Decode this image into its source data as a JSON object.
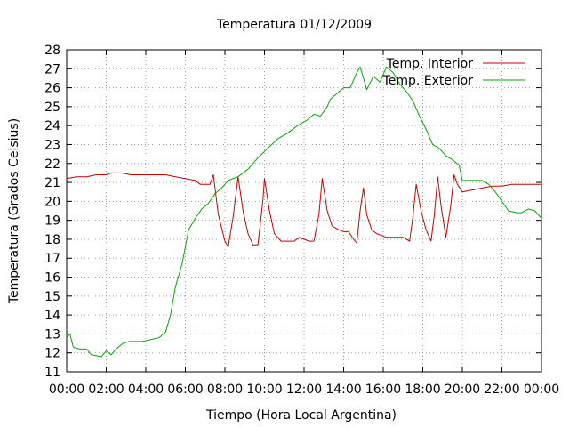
{
  "chart_data": {
    "type": "line",
    "title": "Temperatura 01/12/2009",
    "xlabel": "Tiempo (Hora Local Argentina)",
    "ylabel": "Temperatura (Grados Celsius)",
    "ylim": [
      11,
      28
    ],
    "xlim": [
      "00:00",
      "24:00"
    ],
    "grid": true,
    "legend_position": "top-right",
    "x_ticks": [
      "00:00",
      "02:00",
      "04:00",
      "06:00",
      "08:00",
      "10:00",
      "12:00",
      "14:00",
      "16:00",
      "18:00",
      "20:00",
      "22:00",
      "00:00"
    ],
    "y_ticks": [
      "11",
      "12",
      "13",
      "14",
      "15",
      "16",
      "17",
      "18",
      "19",
      "20",
      "21",
      "22",
      "23",
      "24",
      "25",
      "26",
      "27",
      "28"
    ],
    "series": [
      {
        "name": "Temp. Interior",
        "color": "#cc0000",
        "points": [
          [
            "00:00",
            21.2
          ],
          [
            "00:30",
            21.3
          ],
          [
            "01:00",
            21.3
          ],
          [
            "01:30",
            21.4
          ],
          [
            "02:00",
            21.4
          ],
          [
            "02:15",
            21.5
          ],
          [
            "02:45",
            21.5
          ],
          [
            "03:15",
            21.4
          ],
          [
            "04:00",
            21.4
          ],
          [
            "05:00",
            21.4
          ],
          [
            "05:30",
            21.3
          ],
          [
            "06:00",
            21.2
          ],
          [
            "06:30",
            21.1
          ],
          [
            "06:45",
            20.9
          ],
          [
            "07:15",
            20.9
          ],
          [
            "07:25",
            21.4
          ],
          [
            "07:40",
            19.3
          ],
          [
            "08:00",
            17.9
          ],
          [
            "08:10",
            17.6
          ],
          [
            "08:25",
            19.2
          ],
          [
            "08:40",
            21.3
          ],
          [
            "08:55",
            19.5
          ],
          [
            "09:10",
            18.3
          ],
          [
            "09:25",
            17.7
          ],
          [
            "09:40",
            17.7
          ],
          [
            "09:55",
            20.0
          ],
          [
            "10:00",
            21.2
          ],
          [
            "10:15",
            19.5
          ],
          [
            "10:30",
            18.3
          ],
          [
            "10:50",
            17.9
          ],
          [
            "11:30",
            17.9
          ],
          [
            "11:45",
            18.1
          ],
          [
            "12:00",
            18.0
          ],
          [
            "12:15",
            17.9
          ],
          [
            "12:30",
            17.9
          ],
          [
            "12:45",
            19.3
          ],
          [
            "12:55",
            21.2
          ],
          [
            "13:10",
            19.5
          ],
          [
            "13:25",
            18.7
          ],
          [
            "13:45",
            18.5
          ],
          [
            "14:00",
            18.4
          ],
          [
            "14:15",
            18.4
          ],
          [
            "14:30",
            18.0
          ],
          [
            "14:40",
            17.8
          ],
          [
            "14:50",
            19.5
          ],
          [
            "15:00",
            20.7
          ],
          [
            "15:10",
            19.3
          ],
          [
            "15:25",
            18.5
          ],
          [
            "15:40",
            18.3
          ],
          [
            "15:55",
            18.2
          ],
          [
            "16:10",
            18.1
          ],
          [
            "16:40",
            18.1
          ],
          [
            "17:00",
            18.1
          ],
          [
            "17:20",
            17.9
          ],
          [
            "17:30",
            19.2
          ],
          [
            "17:40",
            20.9
          ],
          [
            "17:55",
            19.5
          ],
          [
            "18:10",
            18.5
          ],
          [
            "18:25",
            17.9
          ],
          [
            "18:35",
            19.3
          ],
          [
            "18:45",
            21.3
          ],
          [
            "18:55",
            19.8
          ],
          [
            "19:10",
            18.1
          ],
          [
            "19:25",
            19.8
          ],
          [
            "19:35",
            21.4
          ],
          [
            "19:45",
            20.9
          ],
          [
            "20:00",
            20.5
          ],
          [
            "20:30",
            20.6
          ],
          [
            "21:00",
            20.7
          ],
          [
            "21:30",
            20.8
          ],
          [
            "22:00",
            20.8
          ],
          [
            "22:30",
            20.9
          ],
          [
            "23:00",
            20.9
          ],
          [
            "24:00",
            20.9
          ]
        ]
      },
      {
        "name": "Temp. Exterior",
        "color": "#00aa00",
        "points": [
          [
            "00:00",
            12.8
          ],
          [
            "00:10",
            13.0
          ],
          [
            "00:20",
            12.3
          ],
          [
            "00:40",
            12.2
          ],
          [
            "01:00",
            12.2
          ],
          [
            "01:15",
            11.9
          ],
          [
            "01:45",
            11.8
          ],
          [
            "02:00",
            12.1
          ],
          [
            "02:15",
            11.9
          ],
          [
            "02:30",
            12.2
          ],
          [
            "02:50",
            12.5
          ],
          [
            "03:10",
            12.6
          ],
          [
            "03:30",
            12.6
          ],
          [
            "03:50",
            12.6
          ],
          [
            "04:15",
            12.7
          ],
          [
            "04:40",
            12.8
          ],
          [
            "05:00",
            13.1
          ],
          [
            "05:15",
            14.0
          ],
          [
            "05:30",
            15.5
          ],
          [
            "05:50",
            16.7
          ],
          [
            "06:10",
            18.5
          ],
          [
            "06:30",
            19.1
          ],
          [
            "06:50",
            19.6
          ],
          [
            "07:10",
            19.9
          ],
          [
            "07:30",
            20.4
          ],
          [
            "07:50",
            20.7
          ],
          [
            "08:10",
            21.1
          ],
          [
            "08:40",
            21.3
          ],
          [
            "09:10",
            21.7
          ],
          [
            "09:40",
            22.3
          ],
          [
            "10:10",
            22.8
          ],
          [
            "10:40",
            23.3
          ],
          [
            "11:10",
            23.6
          ],
          [
            "11:40",
            24.0
          ],
          [
            "12:10",
            24.3
          ],
          [
            "12:30",
            24.6
          ],
          [
            "12:50",
            24.5
          ],
          [
            "13:10",
            25.0
          ],
          [
            "13:20",
            25.4
          ],
          [
            "13:40",
            25.7
          ],
          [
            "14:00",
            26.0
          ],
          [
            "14:20",
            26.0
          ],
          [
            "14:40",
            26.8
          ],
          [
            "14:50",
            27.1
          ],
          [
            "15:00",
            26.5
          ],
          [
            "15:10",
            25.9
          ],
          [
            "15:30",
            26.6
          ],
          [
            "15:50",
            26.3
          ],
          [
            "16:10",
            27.1
          ],
          [
            "16:30",
            26.8
          ],
          [
            "16:50",
            26.2
          ],
          [
            "17:10",
            25.8
          ],
          [
            "17:30",
            25.3
          ],
          [
            "17:50",
            24.5
          ],
          [
            "18:10",
            23.8
          ],
          [
            "18:30",
            23.0
          ],
          [
            "18:50",
            22.8
          ],
          [
            "19:10",
            22.4
          ],
          [
            "19:30",
            22.2
          ],
          [
            "19:50",
            21.9
          ],
          [
            "20:00",
            21.1
          ],
          [
            "20:30",
            21.1
          ],
          [
            "21:00",
            21.1
          ],
          [
            "21:20",
            20.9
          ],
          [
            "21:40",
            20.5
          ],
          [
            "22:00",
            20.0
          ],
          [
            "22:20",
            19.5
          ],
          [
            "22:45",
            19.4
          ],
          [
            "23:00",
            19.4
          ],
          [
            "23:20",
            19.6
          ],
          [
            "23:40",
            19.5
          ],
          [
            "24:00",
            19.1
          ]
        ]
      }
    ]
  }
}
